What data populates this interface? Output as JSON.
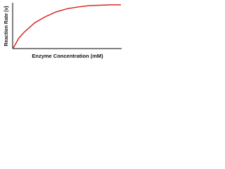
{
  "chart_data": {
    "type": "line",
    "x_label": "Enzyme Concentration (mM)",
    "y_label": "Reaction Rate (v)",
    "x": [
      0,
      0.5,
      1,
      2,
      3,
      4,
      5,
      6,
      7,
      8,
      9,
      10
    ],
    "series": [
      {
        "color": "#d42a2a",
        "values": [
          0,
          0.22,
          0.36,
          0.58,
          0.72,
          0.83,
          0.9,
          0.94,
          0.97,
          0.98,
          0.99,
          0.99
        ]
      }
    ],
    "xlim": [
      0,
      10
    ],
    "ylim": [
      0,
      1.02
    ]
  }
}
